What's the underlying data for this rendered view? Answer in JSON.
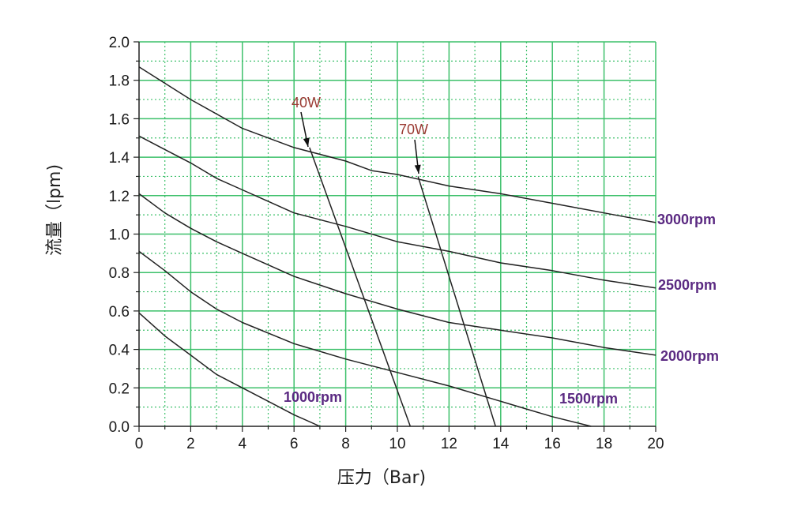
{
  "chart_data": {
    "type": "line",
    "xlabel": "压力（Bar)",
    "ylabel": "流量（lpm)",
    "xlim": [
      0,
      20
    ],
    "ylim": [
      0,
      2.0
    ],
    "x_ticks": [
      "0",
      "2",
      "4",
      "6",
      "8",
      "10",
      "12",
      "14",
      "16",
      "18",
      "20"
    ],
    "y_ticks": [
      "0.0",
      "0.2",
      "0.4",
      "0.6",
      "0.8",
      "1.0",
      "1.2",
      "1.4",
      "1.6",
      "1.8",
      "2.0"
    ],
    "grid": true,
    "grid_color": "#3cc06a",
    "line_color": "#222222",
    "label_color": "#5b2a82",
    "power_label_color": "#9b3a33",
    "series": [
      {
        "name": "3000rpm",
        "x": [
          0,
          2,
          4,
          6,
          8,
          9,
          10,
          12,
          14,
          16,
          18,
          20
        ],
        "y": [
          1.87,
          1.7,
          1.55,
          1.45,
          1.38,
          1.33,
          1.31,
          1.25,
          1.21,
          1.16,
          1.11,
          1.06
        ]
      },
      {
        "name": "2500rpm",
        "x": [
          0,
          1,
          2,
          3,
          4,
          5,
          6,
          8,
          10,
          12,
          14,
          16,
          18,
          20
        ],
        "y": [
          1.51,
          1.44,
          1.37,
          1.29,
          1.23,
          1.17,
          1.11,
          1.04,
          0.96,
          0.91,
          0.85,
          0.81,
          0.76,
          0.72
        ]
      },
      {
        "name": "2000rpm",
        "x": [
          0,
          1,
          2,
          3,
          4,
          6,
          8,
          10,
          12,
          14,
          16,
          18,
          20
        ],
        "y": [
          1.21,
          1.11,
          1.03,
          0.96,
          0.9,
          0.78,
          0.69,
          0.61,
          0.54,
          0.5,
          0.46,
          0.41,
          0.37
        ]
      },
      {
        "name": "1500rpm",
        "x": [
          0,
          1,
          2,
          3,
          4,
          6,
          8,
          10,
          12,
          14,
          15,
          16,
          17.5
        ],
        "y": [
          0.91,
          0.81,
          0.7,
          0.61,
          0.54,
          0.43,
          0.35,
          0.28,
          0.21,
          0.13,
          0.09,
          0.05,
          0.0
        ]
      },
      {
        "name": "1000rpm",
        "x": [
          0,
          1,
          2,
          3,
          4,
          5,
          6,
          7
        ],
        "y": [
          0.59,
          0.47,
          0.37,
          0.27,
          0.2,
          0.13,
          0.06,
          0.0
        ]
      }
    ],
    "power_lines": [
      {
        "name": "40W",
        "x": [
          6.6,
          10.5
        ],
        "y": [
          1.45,
          0.0
        ]
      },
      {
        "name": "70W",
        "x": [
          10.8,
          13.8
        ],
        "y": [
          1.3,
          0.0
        ]
      }
    ]
  }
}
